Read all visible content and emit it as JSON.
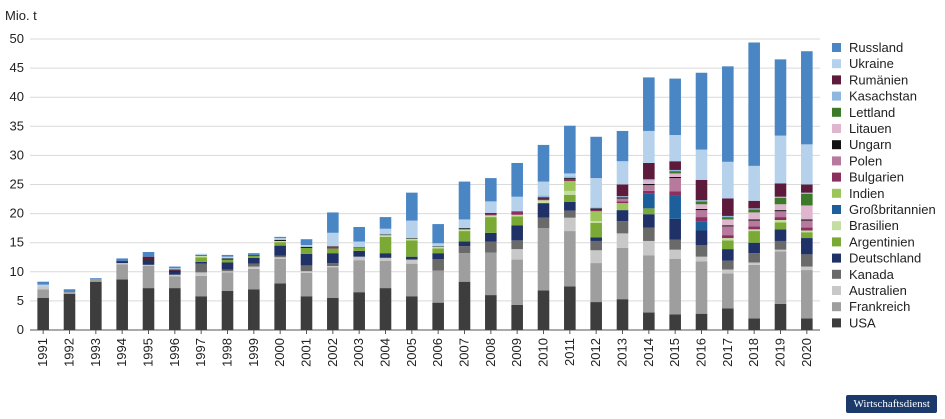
{
  "source_badge": "Wirtschaftsdienst",
  "chart_data": {
    "type": "bar",
    "stacked": true,
    "unit_label": "Mio. t",
    "ylim": [
      0,
      50
    ],
    "yticks": [
      0,
      5,
      10,
      15,
      20,
      25,
      30,
      35,
      40,
      45,
      50
    ],
    "grid": true,
    "legend_position": "right",
    "categories": [
      "1991",
      "1992",
      "1993",
      "1994",
      "1995",
      "1996",
      "1997",
      "1998",
      "1999",
      "2000",
      "2001",
      "2002",
      "2003",
      "2004",
      "2005",
      "2006",
      "2007",
      "2008",
      "2009",
      "2010",
      "2011",
      "2012",
      "2013",
      "2014",
      "2015",
      "2016",
      "2017",
      "2018",
      "2019",
      "2020"
    ],
    "series": [
      {
        "name": "USA",
        "color": "#3d3d3d",
        "values": [
          5.5,
          6.2,
          8.3,
          8.7,
          7.2,
          7.2,
          5.8,
          6.7,
          7.0,
          8.0,
          5.8,
          5.5,
          6.5,
          7.2,
          5.8,
          4.7,
          8.3,
          6.0,
          4.3,
          6.8,
          7.5,
          4.8,
          5.3,
          3.0,
          2.7,
          2.8,
          3.7,
          2.0,
          4.5,
          2.0
        ]
      },
      {
        "name": "Frankreich",
        "color": "#9e9e9e",
        "values": [
          1.5,
          0.3,
          0.4,
          2.6,
          3.8,
          2.0,
          3.5,
          3.2,
          3.5,
          4.2,
          4.0,
          5.3,
          5.5,
          4.7,
          5.6,
          5.5,
          4.9,
          7.3,
          7.8,
          10.7,
          9.5,
          6.7,
          8.8,
          9.8,
          9.5,
          9.0,
          6.0,
          9.2,
          9.0,
          8.3
        ]
      },
      {
        "name": "Australien",
        "color": "#c8c8c8",
        "values": [
          0.5,
          0,
          0,
          0.2,
          0.2,
          0.3,
          0.6,
          0.2,
          0.4,
          0.3,
          0.3,
          0.2,
          0.6,
          0.5,
          0.7,
          0,
          0,
          0,
          1.8,
          0,
          2.3,
          2.2,
          2.5,
          2.5,
          1.6,
          0.8,
          0.7,
          0.4,
          0.3,
          0.6
        ]
      },
      {
        "name": "Kanada",
        "color": "#6a6a6a",
        "values": [
          0,
          0,
          0,
          0,
          0,
          0,
          1.5,
          0.3,
          0.5,
          0.3,
          1.0,
          0.5,
          0,
          0,
          0,
          2.0,
          1.2,
          1.9,
          1.5,
          1.8,
          1.2,
          1.6,
          2.1,
          2.3,
          1.7,
          2.0,
          1.5,
          1.6,
          1.5,
          2.1
        ]
      },
      {
        "name": "Deutschland",
        "color": "#1f3166",
        "values": [
          0,
          0,
          0,
          0.3,
          0.7,
          0.5,
          0.3,
          1.2,
          1.0,
          1.7,
          2.0,
          1.7,
          1.0,
          0.8,
          0.5,
          1.0,
          0.8,
          1.5,
          2.6,
          2.5,
          1.5,
          0.6,
          1.9,
          2.3,
          3.6,
          2.5,
          2.0,
          1.8,
          2.0,
          2.8
        ]
      },
      {
        "name": "Argentinien",
        "color": "#7aaa35",
        "values": [
          0,
          0,
          0,
          0,
          0,
          0,
          0.8,
          0.5,
          0.4,
          0.6,
          1.0,
          0.8,
          0.5,
          2.8,
          2.8,
          0.8,
          1.8,
          2.7,
          1.5,
          0,
          1.2,
          2.5,
          0,
          1.0,
          0,
          0,
          1.5,
          2.0,
          1.2,
          1.0
        ]
      },
      {
        "name": "Brasilien",
        "color": "#c3dea0",
        "values": [
          0,
          0,
          0,
          0,
          0,
          0,
          0.3,
          0,
          0,
          0.2,
          0,
          0,
          0,
          0.3,
          0.3,
          0.3,
          0.3,
          0.3,
          0.3,
          0.5,
          0.7,
          0.3,
          0,
          0,
          0,
          0,
          0.4,
          0.3,
          0.4,
          0.3
        ]
      },
      {
        "name": "Großbritannien",
        "color": "#1d5f9a",
        "values": [
          0,
          0,
          0,
          0,
          0,
          0,
          0,
          0,
          0,
          0,
          0,
          0,
          0,
          0,
          0,
          0,
          0,
          0,
          0,
          0,
          0,
          0,
          0,
          2.5,
          4.0,
          1.5,
          0,
          0,
          0,
          0
        ]
      },
      {
        "name": "Indien",
        "color": "#9cc65a",
        "values": [
          0,
          0,
          0,
          0,
          0,
          0,
          0,
          0,
          0,
          0,
          0,
          0,
          0,
          0,
          0,
          0,
          0,
          0,
          0,
          0,
          1.7,
          1.7,
          1.2,
          0,
          0,
          0,
          0,
          0,
          0,
          0
        ]
      },
      {
        "name": "Bulgarien",
        "color": "#8a2f5e",
        "values": [
          0,
          0,
          0,
          0,
          0,
          0,
          0,
          0,
          0,
          0,
          0,
          0.3,
          0,
          0,
          0,
          0,
          0,
          0.3,
          0.5,
          0.3,
          0.3,
          0.3,
          0.3,
          0.5,
          0.7,
          0.8,
          0.5,
          0.5,
          0.5,
          0.5
        ]
      },
      {
        "name": "Polen",
        "color": "#b77a9e",
        "values": [
          0,
          0,
          0,
          0,
          0,
          0,
          0,
          0,
          0,
          0,
          0,
          0,
          0,
          0,
          0,
          0,
          0,
          0,
          0,
          0,
          0,
          0,
          0.5,
          1.0,
          2.3,
          1.2,
          1.5,
          1.0,
          1.0,
          1.2
        ]
      },
      {
        "name": "Ungarn",
        "color": "#111111",
        "values": [
          0,
          0,
          0,
          0.1,
          0.2,
          0.2,
          0.1,
          0.2,
          0.1,
          0.2,
          0.2,
          0.1,
          0.1,
          0.1,
          0.1,
          0.1,
          0.2,
          0.1,
          0.1,
          0.2,
          0.2,
          0.2,
          0.2,
          0.2,
          0.2,
          0.2,
          0.2,
          0.2,
          0.2,
          0.2
        ]
      },
      {
        "name": "Litauen",
        "color": "#e0b6cf",
        "values": [
          0,
          0,
          0,
          0,
          0,
          0,
          0,
          0,
          0,
          0,
          0,
          0,
          0,
          0,
          0,
          0,
          0,
          0,
          0,
          0,
          0,
          0,
          0,
          0.6,
          0.6,
          0.8,
          1.0,
          1.2,
          1.0,
          2.4
        ]
      },
      {
        "name": "Lettland",
        "color": "#3c7a2a",
        "values": [
          0,
          0,
          0,
          0,
          0,
          0,
          0,
          0,
          0,
          0,
          0,
          0,
          0,
          0,
          0,
          0,
          0,
          0,
          0,
          0,
          0,
          0,
          0,
          0,
          0.4,
          0.5,
          0.4,
          0.5,
          1.1,
          2.0
        ]
      },
      {
        "name": "Kasachstan",
        "color": "#8eb6de",
        "values": [
          0,
          0,
          0,
          0,
          0,
          0,
          0,
          0,
          0,
          0,
          0,
          0,
          0,
          0,
          0,
          0,
          0,
          0,
          0,
          0.3,
          0.3,
          0.2,
          0.2,
          0.2,
          0.2,
          0.2,
          0.2,
          0.2,
          0.2,
          0.2
        ]
      },
      {
        "name": "Rumänien",
        "color": "#5e1a3b",
        "values": [
          0,
          0,
          0,
          0,
          0.5,
          0.2,
          0,
          0,
          0,
          0,
          0,
          0,
          0,
          0,
          0,
          0,
          0,
          0,
          0,
          0,
          0,
          0,
          2.0,
          2.8,
          1.5,
          3.5,
          3.0,
          1.3,
          2.3,
          1.4
        ]
      },
      {
        "name": "Ukraine",
        "color": "#b6d1eb",
        "values": [
          0.3,
          0,
          0,
          0,
          0,
          0.2,
          0.2,
          0.3,
          0,
          0.3,
          0.3,
          2.3,
          1.0,
          1.0,
          3.0,
          0.5,
          1.5,
          2.0,
          2.5,
          2.4,
          0.5,
          5.0,
          4.0,
          5.5,
          4.5,
          5.2,
          6.3,
          6.0,
          8.2,
          6.9
        ]
      },
      {
        "name": "Russland",
        "color": "#4a86c4",
        "values": [
          0.5,
          0.5,
          0.2,
          0.4,
          0.8,
          0.3,
          0,
          0.3,
          0.3,
          0.2,
          1.0,
          3.5,
          2.5,
          2.0,
          4.8,
          3.3,
          6.5,
          4.0,
          5.8,
          6.3,
          8.2,
          7.1,
          5.2,
          9.2,
          9.7,
          13.2,
          16.4,
          21.2,
          13.1,
          16.0
        ]
      }
    ]
  }
}
